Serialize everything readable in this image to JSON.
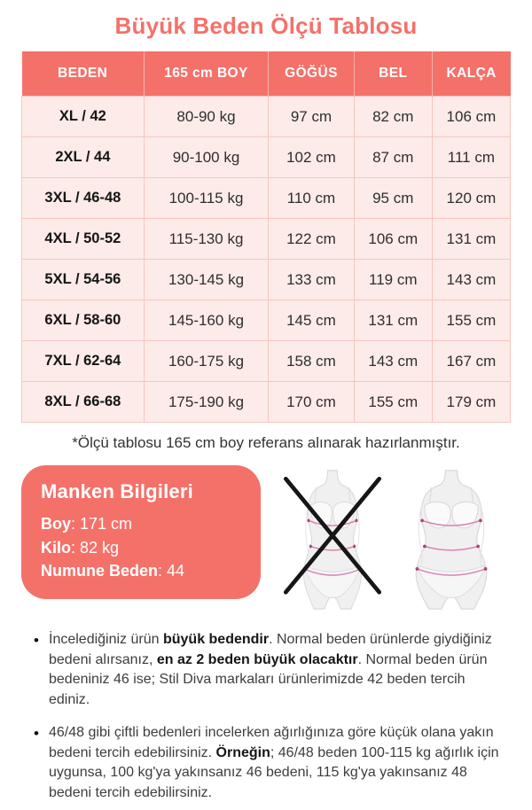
{
  "page": {
    "title": "Büyük Beden Ölçü Tablosu",
    "footnote": "*Ölçü tablosu 165 cm boy referans alınarak hazırlanmıştır."
  },
  "table": {
    "headers": [
      "BEDEN",
      "165 cm BOY",
      "GÖĞÜS",
      "BEL",
      "KALÇA"
    ],
    "rows": [
      [
        "XL / 42",
        "80-90 kg",
        "97 cm",
        "82 cm",
        "106 cm"
      ],
      [
        "2XL / 44",
        "90-100 kg",
        "102 cm",
        "87 cm",
        "111 cm"
      ],
      [
        "3XL / 46-48",
        "100-115 kg",
        "110 cm",
        "95 cm",
        "120 cm"
      ],
      [
        "4XL / 50-52",
        "115-130 kg",
        "122 cm",
        "106 cm",
        "131 cm"
      ],
      [
        "5XL / 54-56",
        "130-145 kg",
        "133 cm",
        "119 cm",
        "143 cm"
      ],
      [
        "6XL / 58-60",
        "145-160 kg",
        "145 cm",
        "131 cm",
        "155 cm"
      ],
      [
        "7XL / 62-64",
        "160-175 kg",
        "158 cm",
        "143 cm",
        "167 cm"
      ],
      [
        "8XL / 66-68",
        "175-190 kg",
        "170 cm",
        "155 cm",
        "179 cm"
      ]
    ]
  },
  "model_info": {
    "title": "Manken Bilgileri",
    "rows": [
      {
        "label": "Boy",
        "value": "171 cm"
      },
      {
        "label": "Kilo",
        "value": "82 kg"
      },
      {
        "label": "Numune Beden",
        "value": "44"
      }
    ]
  },
  "figures": {
    "left": "slim-body-crossed-out",
    "right": "plus-size-body"
  },
  "bullets": [
    {
      "segments": [
        {
          "t": "İncelediğiniz ürün ",
          "b": false
        },
        {
          "t": "büyük bedendir",
          "b": true
        },
        {
          "t": ". Normal beden ürünlerde giydiğiniz bedeni alırsanız, ",
          "b": false
        },
        {
          "t": "en az 2 beden büyük olacaktır",
          "b": true
        },
        {
          "t": ". Normal beden ürün bedeniniz 46 ise; Stil Diva markaları ürünlerimizde 42 beden tercih ediniz.",
          "b": false
        }
      ]
    },
    {
      "segments": [
        {
          "t": "46/48 gibi çiftli bedenleri incelerken ağırlığınıza göre küçük olana yakın bedeni tercih edebilirsiniz. ",
          "b": false
        },
        {
          "t": "Örneğin",
          "b": true
        },
        {
          "t": "; 46/48 beden 100-115 kg ağırlık için uygunsa, 100 kg'ya yakınsanız 46 bedeni, 115 kg'ya yakınsanız 48 bedeni tercih edebilirsiniz.",
          "b": false
        }
      ]
    }
  ],
  "colors": {
    "coral": "#f4716a",
    "cell_bg": "#fcebe9",
    "cell_border": "#f7c5c0",
    "measure_line": "#d884b4",
    "cross_x": "#161616"
  }
}
